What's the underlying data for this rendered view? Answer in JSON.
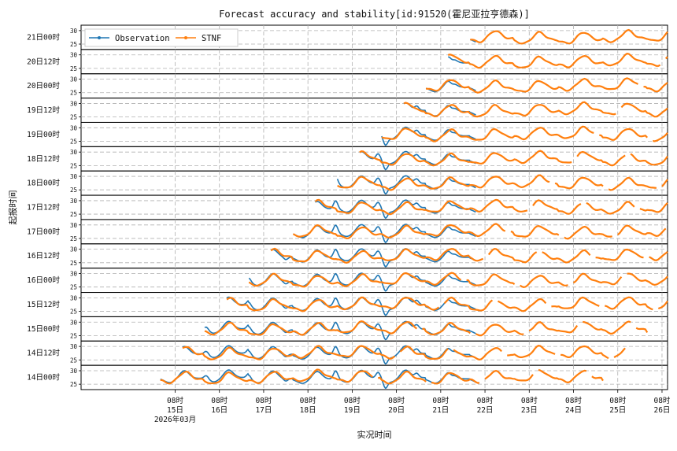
{
  "chart_data": {
    "type": "line",
    "title": "Forecast accuracy and stability[id:91520(霍尼亚拉亨德森)]",
    "xlabel": "实况时间",
    "ylabel": "起报时间",
    "x_ticks": [
      {
        "line1": "08时",
        "line2": "15日",
        "line3": "2026年03月"
      },
      {
        "line1": "08时",
        "line2": "16日"
      },
      {
        "line1": "08时",
        "line2": "17日"
      },
      {
        "line1": "08时",
        "line2": "18日"
      },
      {
        "line1": "08时",
        "line2": "19日"
      },
      {
        "line1": "08时",
        "line2": "20日"
      },
      {
        "line1": "08时",
        "line2": "21日"
      },
      {
        "line1": "08时",
        "line2": "22日"
      },
      {
        "line1": "08时",
        "line2": "23日"
      },
      {
        "line1": "08时",
        "line2": "24日"
      },
      {
        "line1": "08时",
        "line2": "25日"
      },
      {
        "line1": "08时",
        "line2": "26日"
      }
    ],
    "x_range_hours": [
      -51,
      267
    ],
    "panel_y_ticks": [
      "25",
      "30"
    ],
    "panel_y_range": [
      23,
      32
    ],
    "grid": true,
    "legend_position": "top-left",
    "colors": {
      "observation": "#1f77b4",
      "forecast": "#ff7f0e"
    },
    "series": [
      {
        "name": "Observation",
        "values": "diurnal temperature, ~24–31 °C, observed from 14日 to 21日"
      },
      {
        "name": "STNF",
        "values": "diurnal temperature forecast, ~24–30 °C, 10-day lead per issuance"
      }
    ],
    "panels": [
      {
        "label": "21日00时",
        "start_hour": 160
      },
      {
        "label": "20日12时",
        "start_hour": 148
      },
      {
        "label": "20日00时",
        "start_hour": 136
      },
      {
        "label": "19日12时",
        "start_hour": 124
      },
      {
        "label": "19日00时",
        "start_hour": 112
      },
      {
        "label": "18日12时",
        "start_hour": 100
      },
      {
        "label": "18日00时",
        "start_hour": 88
      },
      {
        "label": "17日12时",
        "start_hour": 76
      },
      {
        "label": "17日00时",
        "start_hour": 64
      },
      {
        "label": "16日12时",
        "start_hour": 52
      },
      {
        "label": "16日00时",
        "start_hour": 40
      },
      {
        "label": "15日12时",
        "start_hour": 28
      },
      {
        "label": "15日00时",
        "start_hour": 16
      },
      {
        "label": "14日12时",
        "start_hour": 4
      },
      {
        "label": "14日00时",
        "start_hour": -8
      }
    ]
  }
}
